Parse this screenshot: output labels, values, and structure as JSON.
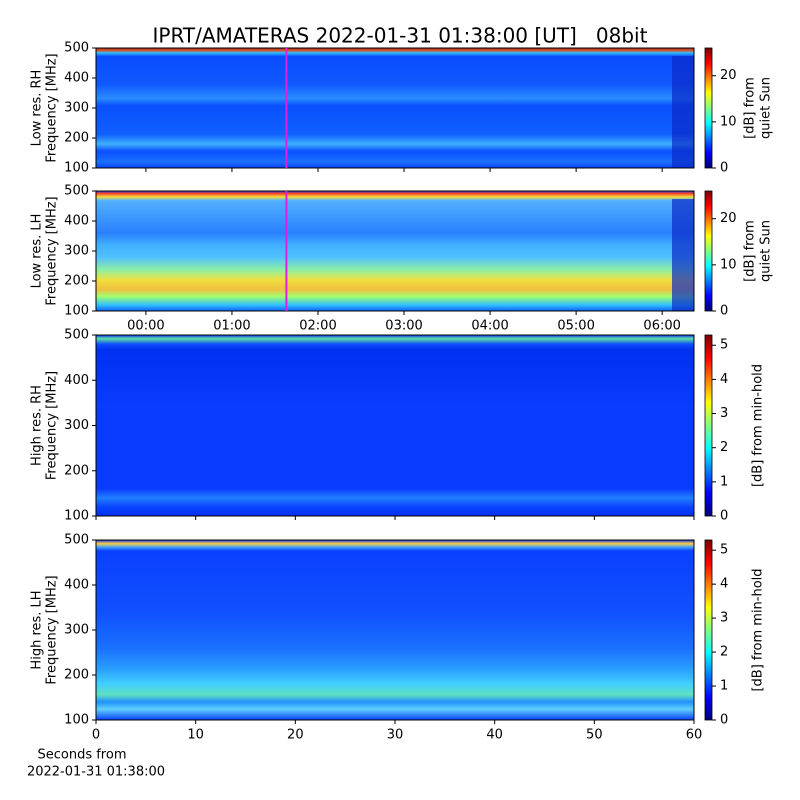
{
  "chart_data": [
    {
      "type": "spectrogram",
      "title": "IPRT/AMATERAS 2022-01-31 01:38:00 [UT]   08bit",
      "ylabel": [
        "Low res. RH",
        "Frequency [MHz]"
      ],
      "xlim": [
        -0.58,
        6.37
      ],
      "xticks": [
        0,
        1,
        2,
        3,
        4,
        5,
        6
      ],
      "xticklabels": false,
      "ylim": [
        100,
        500
      ],
      "yticks": [
        100,
        200,
        300,
        400,
        500
      ],
      "vline": 1.633,
      "vline_color": "#e020e0",
      "colormap": "jet",
      "clim": [
        0,
        26
      ],
      "cticks": [
        0,
        10,
        20
      ],
      "clabel": [
        "[dB] from",
        "quiet Sun"
      ]
    },
    {
      "type": "spectrogram",
      "ylabel": [
        "Low res. LH",
        "Frequency [MHz]"
      ],
      "xlim": [
        -0.58,
        6.37
      ],
      "xticks": [
        {
          "value": 0,
          "label": "00:00"
        },
        {
          "value": 1,
          "label": "01:00"
        },
        {
          "value": 2,
          "label": "02:00"
        },
        {
          "value": 3,
          "label": "03:00"
        },
        {
          "value": 4,
          "label": "04:00"
        },
        {
          "value": 5,
          "label": "05:00"
        },
        {
          "value": 6,
          "label": "06:00"
        }
      ],
      "ylim": [
        100,
        500
      ],
      "yticks": [
        100,
        200,
        300,
        400,
        500
      ],
      "vline": 1.633,
      "vline_color": "#e020e0",
      "colormap": "jet",
      "clim": [
        0,
        26
      ],
      "cticks": [
        0,
        10,
        20
      ],
      "clabel": [
        "[dB] from",
        "quiet Sun"
      ]
    },
    {
      "type": "spectrogram",
      "ylabel": [
        "High res. RH",
        "Frequency [MHz]"
      ],
      "xlim": [
        0,
        60
      ],
      "xticks": [
        0,
        10,
        20,
        30,
        40,
        50,
        60
      ],
      "xticklabels": false,
      "ylim": [
        100,
        500
      ],
      "yticks": [
        100,
        200,
        300,
        400,
        500
      ],
      "colormap": "jet",
      "clim": [
        0,
        5.3
      ],
      "cticks": [
        0,
        1,
        2,
        3,
        4,
        5
      ],
      "clabel": [
        "[dB] from min-hold"
      ]
    },
    {
      "type": "spectrogram",
      "ylabel": [
        "High res. LH",
        "Frequency [MHz]"
      ],
      "xlim": [
        0,
        60
      ],
      "xticks": [
        0,
        10,
        20,
        30,
        40,
        50,
        60
      ],
      "ylim": [
        100,
        500
      ],
      "yticks": [
        100,
        200,
        300,
        400,
        500
      ],
      "xlabel": [
        "Seconds from",
        "2022-01-31 01:38:00"
      ],
      "colormap": "jet",
      "clim": [
        0,
        5.3
      ],
      "cticks": [
        0,
        1,
        2,
        3,
        4,
        5
      ],
      "clabel": [
        "[dB] from min-hold"
      ]
    }
  ]
}
